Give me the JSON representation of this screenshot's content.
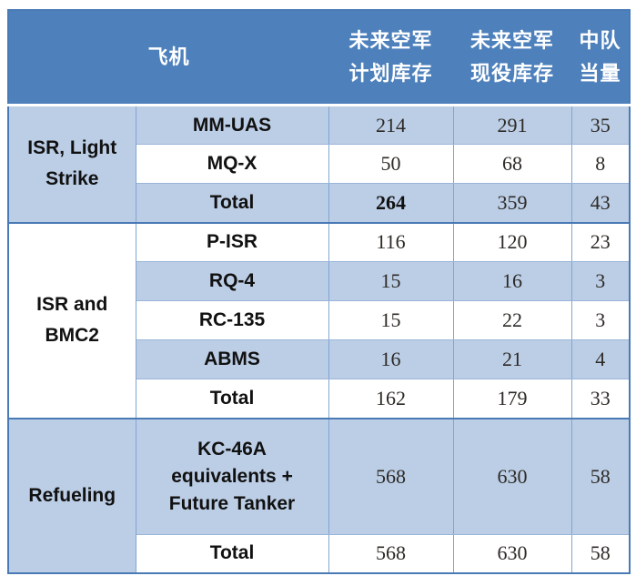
{
  "colors": {
    "header_bg": "#4e81bc",
    "band_light_blue": "#bccee6",
    "band_white": "#ffffff",
    "grid_border_light": "#9ab5d9",
    "grid_border_vertical": "#7fa5d1",
    "group_border_dark": "#4a7ab5",
    "header_text": "#ffffff",
    "body_text": "#111111"
  },
  "header": {
    "aircraft": "飞机",
    "planned_line1": "未来空军",
    "planned_line2": "计划库存",
    "active_line1": "未来空军",
    "active_line2": "现役库存",
    "squadron_line1": "中队",
    "squadron_line2": "当量"
  },
  "groups": [
    {
      "label": "ISR, Light Strike",
      "rows": [
        {
          "name": "MM-UAS",
          "planned": "214",
          "active": "291",
          "squadron": "35"
        },
        {
          "name": "MQ-X",
          "planned": "50",
          "active": "68",
          "squadron": "8"
        },
        {
          "name": "Total",
          "planned": "264",
          "active": "359",
          "squadron": "43"
        }
      ]
    },
    {
      "label": "ISR and BMC2",
      "rows": [
        {
          "name": "P-ISR",
          "planned": "116",
          "active": "120",
          "squadron": "23"
        },
        {
          "name": "RQ-4",
          "planned": "15",
          "active": "16",
          "squadron": "3"
        },
        {
          "name": "RC-135",
          "planned": "15",
          "active": "22",
          "squadron": "3"
        },
        {
          "name": "ABMS",
          "planned": "16",
          "active": "21",
          "squadron": "4"
        },
        {
          "name": "Total",
          "planned": "162",
          "active": "179",
          "squadron": "33"
        }
      ]
    },
    {
      "label": "Refueling",
      "rows": [
        {
          "name_lines": [
            "KC-46A",
            "equivalents +",
            "Future Tanker"
          ],
          "planned": "568",
          "active": "630",
          "squadron": "58"
        },
        {
          "name": "Total",
          "planned": "568",
          "active": "630",
          "squadron": "58"
        }
      ]
    }
  ]
}
